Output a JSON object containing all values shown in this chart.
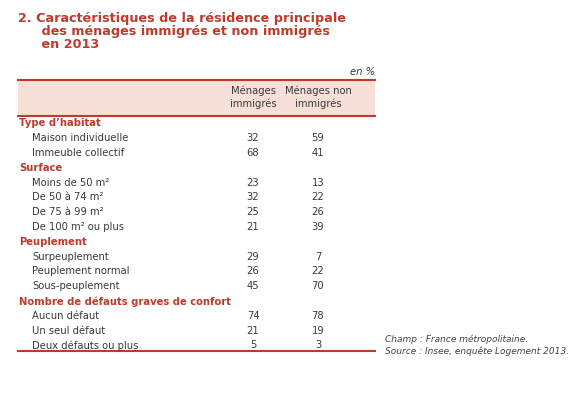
{
  "title_line1": "2. Caractéristiques de la résidence principale",
  "title_line2": "   des ménages immigrés et non immigrés",
  "title_line3": "   en 2013",
  "title_color": "#c0392b",
  "col1_header": "Ménages\nimmigrés",
  "col2_header": "Ménages non\nimmigrés",
  "en_pct": "en %",
  "header_bg": "#f7e0d8",
  "header_line_color": "#c0392b",
  "section_color": "#c0392b",
  "text_color": "#3a3a3a",
  "footer_text1": "Champ : France métropolitaine.",
  "footer_text2": "Source : Insee, enquête Logement 2013.",
  "footer_color": "#444444",
  "rows": [
    {
      "label": "Type d’habitat",
      "val1": null,
      "val2": null,
      "is_section": true
    },
    {
      "label": "Maison individuelle",
      "val1": "32",
      "val2": "59",
      "is_section": false
    },
    {
      "label": "Immeuble collectif",
      "val1": "68",
      "val2": "41",
      "is_section": false
    },
    {
      "label": "Surface",
      "val1": null,
      "val2": null,
      "is_section": true
    },
    {
      "label": "Moins de 50 m²",
      "val1": "23",
      "val2": "13",
      "is_section": false
    },
    {
      "label": "De 50 à 74 m²",
      "val1": "32",
      "val2": "22",
      "is_section": false
    },
    {
      "label": "De 75 à 99 m²",
      "val1": "25",
      "val2": "26",
      "is_section": false
    },
    {
      "label": "De 100 m² ou plus",
      "val1": "21",
      "val2": "39",
      "is_section": false
    },
    {
      "label": "Peuplement",
      "val1": null,
      "val2": null,
      "is_section": true
    },
    {
      "label": "Surpeuplement",
      "val1": "29",
      "val2": "7",
      "is_section": false
    },
    {
      "label": "Peuplement normal",
      "val1": "26",
      "val2": "22",
      "is_section": false
    },
    {
      "label": "Sous-peuplement",
      "val1": "45",
      "val2": "70",
      "is_section": false
    },
    {
      "label": "Nombre de défauts graves de confort",
      "val1": null,
      "val2": null,
      "is_section": true
    },
    {
      "label": "Aucun défaut",
      "val1": "74",
      "val2": "78",
      "is_section": false
    },
    {
      "label": "Un seul défaut",
      "val1": "21",
      "val2": "19",
      "is_section": false
    },
    {
      "label": "Deux défauts ou plus",
      "val1": "5",
      "val2": "3",
      "is_section": false
    }
  ]
}
